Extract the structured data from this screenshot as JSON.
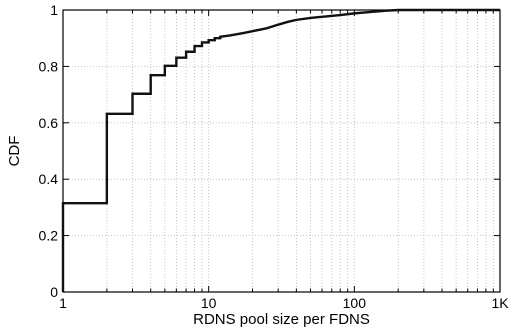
{
  "chart_data": {
    "type": "line",
    "title": "",
    "xlabel": "RDNS pool size per FDNS",
    "ylabel": "CDF",
    "x_scale": "log",
    "xlim": [
      1,
      1000
    ],
    "ylim": [
      0,
      1
    ],
    "x_ticks": [
      {
        "value": 1,
        "label": "1"
      },
      {
        "value": 10,
        "label": "10"
      },
      {
        "value": 100,
        "label": "100"
      },
      {
        "value": 1000,
        "label": "1K"
      }
    ],
    "y_ticks": [
      {
        "value": 0,
        "label": "0"
      },
      {
        "value": 0.2,
        "label": "0.2"
      },
      {
        "value": 0.4,
        "label": "0.4"
      },
      {
        "value": 0.6,
        "label": "0.6"
      },
      {
        "value": 0.8,
        "label": "0.8"
      },
      {
        "value": 1,
        "label": "1"
      }
    ],
    "grid": true,
    "line_color": "#111111",
    "series": [
      {
        "step": true,
        "points": [
          [
            1,
            0
          ],
          [
            1,
            0.315
          ],
          [
            2,
            0.315
          ],
          [
            2,
            0.632
          ],
          [
            3,
            0.632
          ],
          [
            3,
            0.703
          ],
          [
            4,
            0.703
          ],
          [
            4,
            0.769
          ],
          [
            5,
            0.769
          ],
          [
            5,
            0.802
          ],
          [
            6,
            0.802
          ],
          [
            6,
            0.831
          ],
          [
            7,
            0.831
          ],
          [
            7,
            0.852
          ],
          [
            8,
            0.852
          ],
          [
            8,
            0.872
          ],
          [
            9,
            0.872
          ],
          [
            9,
            0.885
          ],
          [
            10,
            0.885
          ],
          [
            10,
            0.893
          ],
          [
            11,
            0.893
          ],
          [
            11,
            0.9
          ],
          [
            12,
            0.9
          ],
          [
            12,
            0.905
          ],
          [
            14,
            0.91
          ],
          [
            16,
            0.915
          ],
          [
            18,
            0.92
          ],
          [
            20,
            0.925
          ],
          [
            25,
            0.935
          ],
          [
            30,
            0.948
          ],
          [
            35,
            0.958
          ],
          [
            40,
            0.965
          ],
          [
            50,
            0.972
          ],
          [
            60,
            0.976
          ],
          [
            80,
            0.982
          ],
          [
            100,
            0.988
          ],
          [
            130,
            0.993
          ],
          [
            160,
            0.997
          ],
          [
            200,
            1
          ],
          [
            1000,
            1
          ]
        ]
      }
    ]
  }
}
